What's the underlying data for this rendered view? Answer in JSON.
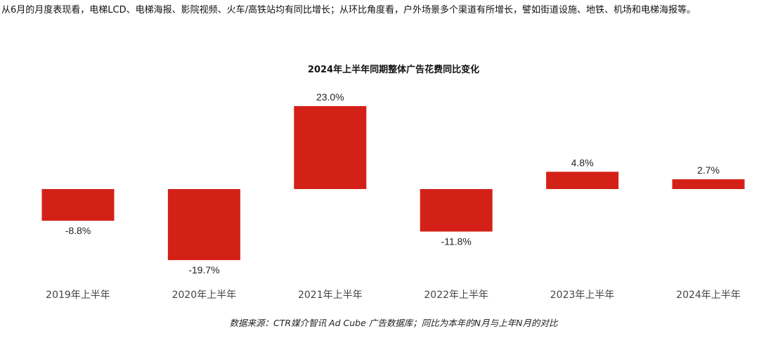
{
  "intro_text": "从6月的月度表现看，电梯LCD、电梯海报、影院视频、火车/高铁站均有同比增长；从环比角度看，户外场景多个渠道有所增长，譬如街道设施、地铁、机场和电梯海报等。",
  "source_note": "数据来源：CTR媒介智讯 Ad Cube 广告数据库；同比为本年的N月与上年N月的对比",
  "colors": {
    "bar": "#D42118",
    "label": "#222222",
    "axis_label": "#444444"
  },
  "chart_data": {
    "type": "bar",
    "title": "2024年上半年同期整体广告花费同比变化",
    "categories": [
      "2019年上半年",
      "2020年上半年",
      "2021年上半年",
      "2022年上半年",
      "2023年上半年",
      "2024年上半年"
    ],
    "values": [
      -8.8,
      -19.7,
      23.0,
      -11.8,
      4.8,
      2.7
    ],
    "data_labels": [
      "-8.8%",
      "-19.7%",
      "23.0%",
      "-11.8%",
      "4.8%",
      "2.7%"
    ],
    "unit": "%",
    "ylim": [
      -20,
      23
    ],
    "grid": false,
    "legend": "none"
  }
}
